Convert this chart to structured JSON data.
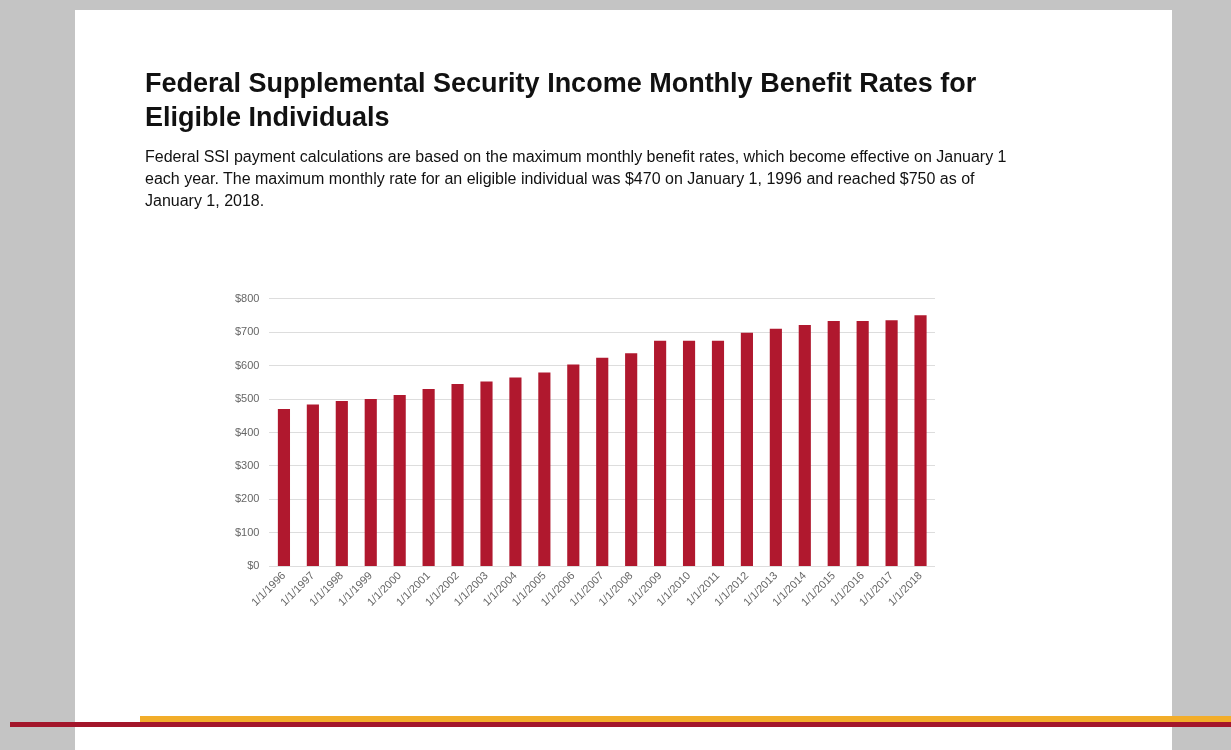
{
  "chart_data": {
    "type": "bar",
    "title": "Federal Supplemental Security Income Monthly Benefit Rates for Eligible Individuals",
    "subtitle": "Federal SSI payment calculations are based on the maximum monthly benefit rates, which become effective on January 1 each year. The maximum monthly rate for an eligible individual was $470 on January 1, 1996 and reached $750 as of January 1, 2018.",
    "categories": [
      "1/1/1996",
      "1/1/1997",
      "1/1/1998",
      "1/1/1999",
      "1/1/2000",
      "1/1/2001",
      "1/1/2002",
      "1/1/2003",
      "1/1/2004",
      "1/1/2005",
      "1/1/2006",
      "1/1/2007",
      "1/1/2008",
      "1/1/2009",
      "1/1/2010",
      "1/1/2011",
      "1/1/2012",
      "1/1/2013",
      "1/1/2014",
      "1/1/2015",
      "1/1/2016",
      "1/1/2017",
      "1/1/2018"
    ],
    "values": [
      470,
      484,
      494,
      500,
      512,
      530,
      545,
      552,
      564,
      579,
      603,
      623,
      637,
      674,
      674,
      674,
      698,
      710,
      721,
      733,
      733,
      735,
      750
    ],
    "color": "#b0182e",
    "ylim": [
      0,
      800
    ],
    "yticks": [
      {
        "value": 0,
        "label": "$0"
      },
      {
        "value": 100,
        "label": "$100"
      },
      {
        "value": 200,
        "label": "$200"
      },
      {
        "value": 300,
        "label": "$300"
      },
      {
        "value": 400,
        "label": "$400"
      },
      {
        "value": 500,
        "label": "$500"
      },
      {
        "value": 600,
        "label": "$600"
      },
      {
        "value": 700,
        "label": "$700"
      },
      {
        "value": 800,
        "label": "$800"
      }
    ],
    "grid": "y"
  }
}
